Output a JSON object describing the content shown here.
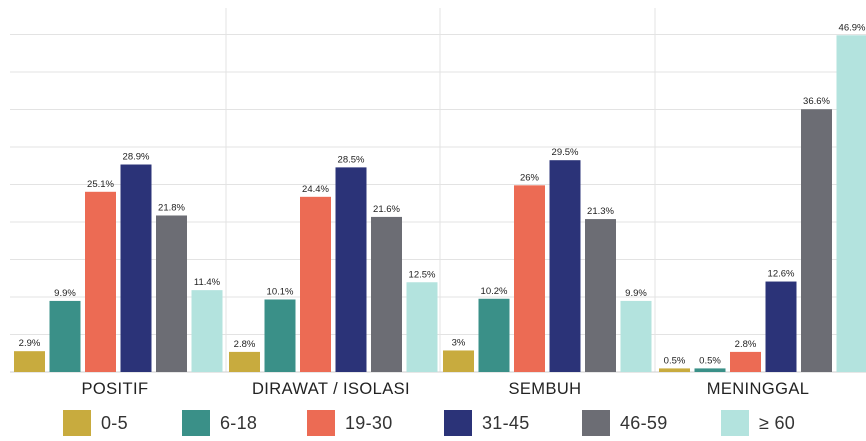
{
  "chart_data": {
    "type": "bar",
    "title": "",
    "xlabel": "",
    "ylabel": "",
    "ylim": [
      0,
      50
    ],
    "grid": true,
    "legend_position": "bottom",
    "categories": [
      "POSITIF",
      "DIRAWAT / ISOLASI",
      "SEMBUH",
      "MENINGGAL"
    ],
    "series": [
      {
        "name": "0-5",
        "color": "#c8ab3e",
        "values": [
          2.9,
          2.8,
          3,
          0.5
        ],
        "labels": [
          "2.9%",
          "2.8%",
          "3%",
          "0.5%"
        ]
      },
      {
        "name": "6-18",
        "color": "#3a9088",
        "values": [
          9.9,
          10.1,
          10.2,
          0.5
        ],
        "labels": [
          "9.9%",
          "10.1%",
          "10.2%",
          "0.5%"
        ]
      },
      {
        "name": "19-30",
        "color": "#ec6b54",
        "values": [
          25.1,
          24.4,
          26,
          2.8
        ],
        "labels": [
          "25.1%",
          "24.4%",
          "26%",
          "2.8%"
        ]
      },
      {
        "name": "31-45",
        "color": "#2b3378",
        "values": [
          28.9,
          28.5,
          29.5,
          12.6
        ],
        "labels": [
          "28.9%",
          "28.5%",
          "29.5%",
          "12.6%"
        ]
      },
      {
        "name": "46-59",
        "color": "#6c6d74",
        "values": [
          21.8,
          21.6,
          21.3,
          36.6
        ],
        "labels": [
          "21.8%",
          "21.6%",
          "21.3%",
          "36.6%"
        ]
      },
      {
        "name": "≥ 60",
        "color": "#b3e3de",
        "values": [
          11.4,
          12.5,
          9.9,
          46.9
        ],
        "labels": [
          "11.4%",
          "12.5%",
          "9.9%",
          "46.9%"
        ]
      }
    ]
  }
}
